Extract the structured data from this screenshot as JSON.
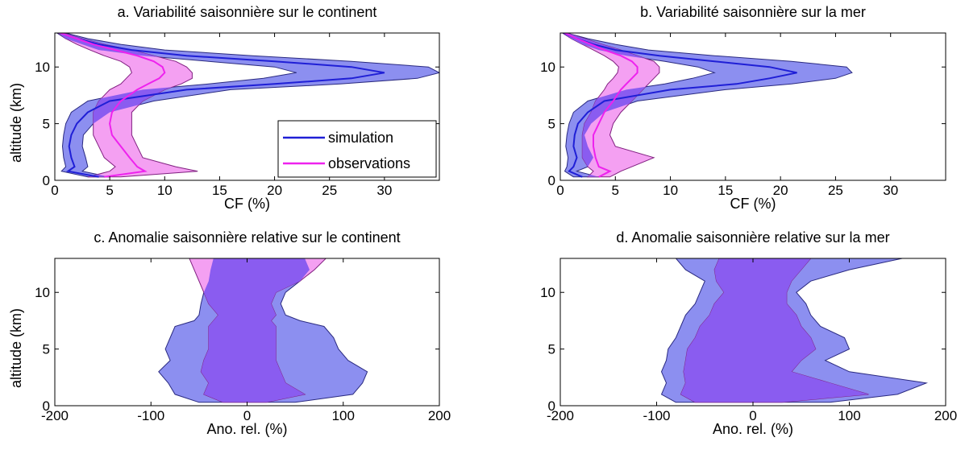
{
  "colors": {
    "simulation_line": "#1f1fd6",
    "simulation_fill": "#8c8ff0",
    "observations_line": "#ee22ee",
    "observations_fill": "#f4a0f2",
    "overlap_fill": "#8a5cf0"
  },
  "legend": {
    "simulation": "simulation",
    "observations": "observations"
  },
  "chart_data": [
    {
      "id": "a",
      "type": "area",
      "title": "a. Variabilité saisonnière sur le continent",
      "xlabel": "CF (%)",
      "ylabel": "altitude (km)",
      "xlim": [
        0,
        35
      ],
      "ylim": [
        0,
        13
      ],
      "xticks": [
        "0",
        "5",
        "10",
        "15",
        "20",
        "25",
        "30"
      ],
      "yticks": [
        "0",
        "5",
        "10"
      ],
      "legend_position": "lower-right",
      "series": [
        {
          "name": "simulation",
          "y": [
            0.3,
            0.8,
            1.2,
            2,
            3,
            4,
            5,
            6,
            7,
            8,
            8.5,
            9,
            9.5,
            10,
            10.5,
            11,
            11.5,
            12,
            12.5,
            13
          ],
          "mean": [
            4,
            1.2,
            1.8,
            1.5,
            1.3,
            1.5,
            2.0,
            3.0,
            5.0,
            12,
            20,
            27,
            30,
            27,
            20,
            12,
            7,
            4,
            2,
            0.5
          ],
          "lower": [
            3,
            0.6,
            1.0,
            0.8,
            0.7,
            0.8,
            1.0,
            1.5,
            3.0,
            8,
            14,
            19,
            22,
            20,
            14,
            8,
            4,
            2.5,
            1,
            0.2
          ],
          "upper": [
            5,
            2.5,
            3.0,
            2.8,
            2.5,
            2.6,
            3.5,
            5.0,
            9.0,
            16,
            26,
            33,
            35,
            34,
            27,
            18,
            10,
            6,
            3,
            1.0
          ]
        },
        {
          "name": "observations",
          "y": [
            0.3,
            0.8,
            1.2,
            2,
            3,
            4,
            5,
            6,
            7,
            8,
            8.5,
            9,
            9.5,
            10,
            10.5,
            11,
            11.5,
            12,
            12.5,
            13
          ],
          "mean": [
            4.5,
            8.2,
            7.5,
            6.8,
            6.0,
            5.2,
            5.0,
            5.2,
            6.0,
            7.5,
            8.5,
            9.5,
            10,
            9.8,
            9.0,
            7.5,
            5.5,
            3.5,
            2.0,
            0.5
          ],
          "lower": [
            3.0,
            5.0,
            5.5,
            4.5,
            4.0,
            3.5,
            3.5,
            3.5,
            4.0,
            5.0,
            6.0,
            6.5,
            7,
            6.8,
            6.0,
            4.5,
            3.2,
            2.0,
            1.0,
            0.3
          ],
          "upper": [
            6.0,
            13.0,
            11.0,
            8.0,
            7.5,
            7.0,
            7.0,
            7.0,
            8.0,
            10.0,
            11.5,
            12.5,
            12.5,
            12.0,
            11.0,
            9.0,
            7.0,
            4.5,
            2.5,
            0.8
          ]
        }
      ]
    },
    {
      "id": "b",
      "type": "area",
      "title": "b. Variabilité saisonnière sur la mer",
      "xlabel": "CF (%)",
      "ylabel": "",
      "xlim": [
        0,
        35
      ],
      "ylim": [
        0,
        13
      ],
      "xticks": [
        "0",
        "5",
        "10",
        "15",
        "20",
        "25",
        "30"
      ],
      "yticks": [
        "0",
        "5",
        "10"
      ],
      "series": [
        {
          "name": "simulation",
          "y": [
            0.3,
            0.8,
            1.2,
            2,
            3,
            4,
            5,
            6,
            7,
            8,
            8.5,
            9,
            9.5,
            10,
            10.5,
            11,
            11.5,
            12,
            12.5,
            13
          ],
          "mean": [
            2.0,
            0.8,
            1.2,
            1.5,
            1.2,
            1.3,
            1.6,
            2.5,
            4.0,
            10.0,
            16.0,
            19.0,
            21.5,
            19.0,
            14.0,
            9.0,
            5.0,
            3.0,
            1.5,
            0.3
          ],
          "lower": [
            1.2,
            0.4,
            0.6,
            0.7,
            0.5,
            0.6,
            0.8,
            1.2,
            2.5,
            6.0,
            9.5,
            12.0,
            14.0,
            12.5,
            9.5,
            6.0,
            3.5,
            2.0,
            1.0,
            0.2
          ],
          "upper": [
            3.5,
            1.5,
            2.5,
            3.0,
            2.5,
            2.2,
            2.8,
            4.0,
            7.0,
            15.0,
            21.0,
            25.0,
            26.5,
            26.0,
            21.0,
            14.0,
            8.0,
            5.0,
            2.5,
            0.6
          ]
        },
        {
          "name": "observations",
          "y": [
            0.3,
            0.8,
            1.2,
            2,
            3,
            4,
            5,
            6,
            7,
            8,
            8.5,
            9,
            9.5,
            10,
            10.5,
            11,
            11.5,
            12,
            12.5,
            13
          ],
          "mean": [
            3.5,
            4.5,
            3.5,
            3.2,
            3.0,
            3.0,
            3.5,
            4.0,
            4.8,
            5.5,
            6.0,
            6.5,
            7.0,
            7.0,
            6.5,
            5.5,
            4.0,
            2.8,
            1.5,
            0.4
          ],
          "lower": [
            2.5,
            3.0,
            2.5,
            2.0,
            2.0,
            2.0,
            2.2,
            2.8,
            3.2,
            4.0,
            4.3,
            4.8,
            5.2,
            5.3,
            4.8,
            4.0,
            3.0,
            2.0,
            1.0,
            0.2
          ],
          "upper": [
            4.5,
            5.5,
            6.5,
            8.5,
            5.0,
            4.5,
            4.8,
            5.5,
            6.5,
            7.5,
            8.0,
            8.5,
            9.0,
            9.0,
            8.5,
            7.0,
            5.5,
            3.8,
            2.2,
            0.6
          ]
        }
      ]
    },
    {
      "id": "c",
      "type": "area",
      "title": "c. Anomalie saisonnière relative sur le continent",
      "xlabel": "Ano. rel. (%)",
      "ylabel": "altitude (km)",
      "xlim": [
        -200,
        200
      ],
      "ylim": [
        0,
        13
      ],
      "xticks": [
        "-200",
        "-100",
        "0",
        "100",
        "200"
      ],
      "yticks": [
        "0",
        "5",
        "10"
      ],
      "series": [
        {
          "name": "simulation",
          "y": [
            0.3,
            1,
            2,
            3,
            4,
            5,
            6,
            7,
            7.5,
            8,
            9,
            10,
            11,
            12,
            13
          ],
          "lower": [
            -50,
            -75,
            -82,
            -92,
            -80,
            -85,
            -80,
            -75,
            -55,
            -50,
            -48,
            -45,
            -40,
            -38,
            -35
          ],
          "upper": [
            50,
            110,
            120,
            125,
            105,
            95,
            90,
            80,
            55,
            40,
            35,
            40,
            55,
            65,
            60
          ]
        },
        {
          "name": "observations",
          "y": [
            0.3,
            1,
            2,
            3,
            4,
            5,
            6,
            7,
            7.5,
            8,
            9,
            10,
            11,
            12,
            13
          ],
          "lower": [
            -25,
            -45,
            -40,
            -48,
            -45,
            -40,
            -40,
            -40,
            -35,
            -30,
            -40,
            -45,
            -50,
            -55,
            -60
          ],
          "upper": [
            20,
            60,
            40,
            35,
            30,
            30,
            30,
            30,
            25,
            30,
            25,
            30,
            55,
            70,
            82
          ]
        }
      ]
    },
    {
      "id": "d",
      "type": "area",
      "title": "d. Anomalie saisonnière relative sur la mer",
      "xlabel": "Ano. rel. (%)",
      "ylabel": "",
      "xlim": [
        -200,
        200
      ],
      "ylim": [
        0,
        13
      ],
      "xticks": [
        "-200",
        "-100",
        "0",
        "100",
        "200"
      ],
      "yticks": [
        "0",
        "5",
        "10"
      ],
      "series": [
        {
          "name": "simulation",
          "y": [
            0.3,
            1,
            2,
            3,
            4,
            5,
            6,
            7,
            8,
            9,
            10,
            11,
            12,
            13
          ],
          "lower": [
            -80,
            -95,
            -90,
            -95,
            -90,
            -88,
            -80,
            -75,
            -70,
            -60,
            -55,
            -50,
            -70,
            -80
          ],
          "upper": [
            80,
            150,
            180,
            100,
            75,
            100,
            95,
            70,
            60,
            55,
            45,
            60,
            100,
            155
          ]
        },
        {
          "name": "observations",
          "y": [
            0.3,
            1,
            2,
            3,
            4,
            5,
            6,
            7,
            8,
            9,
            10,
            11,
            12,
            13
          ],
          "lower": [
            -60,
            -75,
            -70,
            -72,
            -70,
            -68,
            -60,
            -55,
            -45,
            -40,
            -30,
            -38,
            -40,
            -35
          ],
          "upper": [
            30,
            120,
            80,
            40,
            50,
            65,
            60,
            50,
            45,
            35,
            35,
            40,
            50,
            60
          ]
        }
      ]
    }
  ]
}
